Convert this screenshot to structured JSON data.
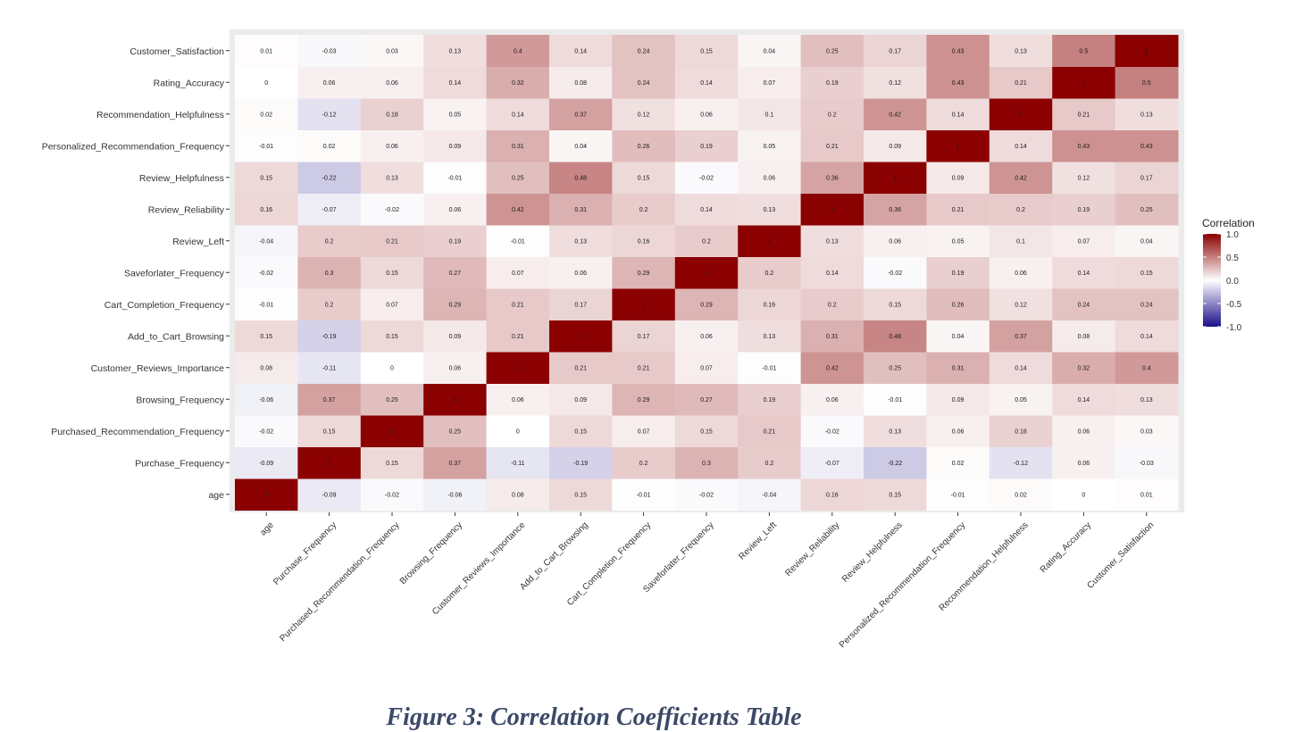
{
  "caption": "Figure 3: Correlation Coefficients Table",
  "chart_data": {
    "type": "heatmap",
    "variables": [
      "age",
      "Purchase_Frequency",
      "Purchased_Recommendation_Frequency",
      "Browsing_Frequency",
      "Customer_Reviews_Importance",
      "Add_to_Cart_Browsing",
      "Cart_Completion_Frequency",
      "Saveforlater_Frequency",
      "Review_Left",
      "Review_Reliability",
      "Review_Helpfulness",
      "Personalized_Recommendation_Frequency",
      "Recommendation_Helpfulness",
      "Rating_Accuracy",
      "Customer_Satisfaction"
    ],
    "matrix": [
      [
        1,
        -0.09,
        -0.02,
        -0.06,
        0.08,
        0.15,
        -0.01,
        -0.02,
        -0.04,
        0.16,
        0.15,
        -0.01,
        0.02,
        0,
        0.01
      ],
      [
        -0.09,
        1,
        0.15,
        0.37,
        -0.11,
        -0.19,
        0.2,
        0.3,
        0.2,
        -0.07,
        -0.22,
        0.02,
        -0.12,
        0.06,
        -0.03
      ],
      [
        -0.02,
        0.15,
        1,
        0.25,
        0,
        0.15,
        0.07,
        0.15,
        0.21,
        -0.02,
        0.13,
        0.06,
        0.18,
        0.06,
        0.03
      ],
      [
        -0.06,
        0.37,
        0.25,
        1,
        0.06,
        0.09,
        0.29,
        0.27,
        0.19,
        0.06,
        -0.01,
        0.09,
        0.05,
        0.14,
        0.13
      ],
      [
        0.08,
        -0.11,
        0,
        0.06,
        1,
        0.21,
        0.21,
        0.07,
        -0.01,
        0.42,
        0.25,
        0.31,
        0.14,
        0.32,
        0.4
      ],
      [
        0.15,
        -0.19,
        0.15,
        0.09,
        0.21,
        1,
        0.17,
        0.06,
        0.13,
        0.31,
        0.48,
        0.04,
        0.37,
        0.08,
        0.14
      ],
      [
        -0.01,
        0.2,
        0.07,
        0.29,
        0.21,
        0.17,
        1,
        0.29,
        0.16,
        0.2,
        0.15,
        0.26,
        0.12,
        0.24,
        0.24
      ],
      [
        -0.02,
        0.3,
        0.15,
        0.27,
        0.07,
        0.06,
        0.29,
        1,
        0.2,
        0.14,
        -0.02,
        0.19,
        0.06,
        0.14,
        0.15
      ],
      [
        -0.04,
        0.2,
        0.21,
        0.19,
        -0.01,
        0.13,
        0.16,
        0.2,
        1,
        0.13,
        0.06,
        0.05,
        0.1,
        0.07,
        0.04
      ],
      [
        0.16,
        -0.07,
        -0.02,
        0.06,
        0.42,
        0.31,
        0.2,
        0.14,
        0.13,
        1,
        0.36,
        0.21,
        0.2,
        0.19,
        0.25
      ],
      [
        0.15,
        -0.22,
        0.13,
        -0.01,
        0.25,
        0.48,
        0.15,
        -0.02,
        0.06,
        0.36,
        1,
        0.09,
        0.42,
        0.12,
        0.17
      ],
      [
        -0.01,
        0.02,
        0.06,
        0.09,
        0.31,
        0.04,
        0.26,
        0.19,
        0.05,
        0.21,
        0.09,
        1,
        0.14,
        0.43,
        0.43
      ],
      [
        0.02,
        -0.12,
        0.18,
        0.05,
        0.14,
        0.37,
        0.12,
        0.06,
        0.1,
        0.2,
        0.42,
        0.14,
        1,
        0.21,
        0.13
      ],
      [
        0,
        0.06,
        0.06,
        0.14,
        0.32,
        0.08,
        0.24,
        0.14,
        0.07,
        0.19,
        0.12,
        0.43,
        0.21,
        1,
        0.5
      ],
      [
        0.01,
        -0.03,
        0.03,
        0.13,
        0.4,
        0.14,
        0.24,
        0.15,
        0.04,
        0.25,
        0.17,
        0.43,
        0.13,
        0.5,
        1
      ]
    ],
    "y_order": "age at bottom, Customer_Satisfaction at top",
    "legend": {
      "title": "Correlation",
      "ticks": [
        "1.0",
        "0.5",
        "0.0",
        "-0.5",
        "-1.0"
      ],
      "tick_values": [
        1,
        0.5,
        0,
        -0.5,
        -1
      ],
      "range": [
        -1,
        1
      ],
      "placement": "right"
    },
    "colors": {
      "low": "#1b0f8a",
      "mid": "#ffffff",
      "high": "#8b0000",
      "panel_background": "#ebebeb"
    },
    "grid": false
  }
}
